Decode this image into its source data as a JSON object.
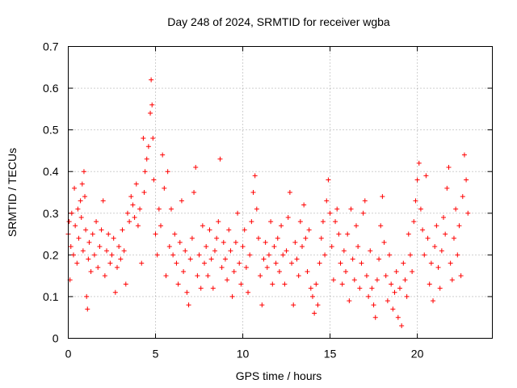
{
  "chart_data": {
    "type": "scatter",
    "title": "Day 248 of 2024, SRMTID for receiver wgba",
    "xlabel": "GPS time / hours",
    "ylabel": "SRMTID / TECUs",
    "xlim": [
      0,
      24.3
    ],
    "ylim": [
      0,
      0.7
    ],
    "xticks": [
      "0",
      "5",
      "10",
      "15",
      "20"
    ],
    "yticks": [
      "0",
      "0.1",
      "0.2",
      "0.3",
      "0.4",
      "0.5",
      "0.6",
      "0.7"
    ],
    "grid": true,
    "marker": "+",
    "color": "#ff0000",
    "series": [
      {
        "name": "SRMTID",
        "points": [
          [
            0.0,
            0.25
          ],
          [
            0.05,
            0.28
          ],
          [
            0.1,
            0.14
          ],
          [
            0.15,
            0.22
          ],
          [
            0.2,
            0.3
          ],
          [
            0.3,
            0.2
          ],
          [
            0.35,
            0.36
          ],
          [
            0.4,
            0.27
          ],
          [
            0.5,
            0.18
          ],
          [
            0.55,
            0.31
          ],
          [
            0.6,
            0.24
          ],
          [
            0.7,
            0.33
          ],
          [
            0.75,
            0.29
          ],
          [
            0.8,
            0.37
          ],
          [
            0.85,
            0.21
          ],
          [
            0.9,
            0.4
          ],
          [
            0.95,
            0.34
          ],
          [
            1.0,
            0.26
          ],
          [
            1.05,
            0.1
          ],
          [
            1.1,
            0.07
          ],
          [
            1.15,
            0.19
          ],
          [
            1.2,
            0.23
          ],
          [
            1.3,
            0.16
          ],
          [
            1.4,
            0.25
          ],
          [
            1.5,
            0.2
          ],
          [
            1.6,
            0.28
          ],
          [
            1.7,
            0.17
          ],
          [
            1.8,
            0.22
          ],
          [
            1.9,
            0.26
          ],
          [
            2.0,
            0.33
          ],
          [
            2.1,
            0.15
          ],
          [
            2.2,
            0.21
          ],
          [
            2.3,
            0.25
          ],
          [
            2.4,
            0.18
          ],
          [
            2.5,
            0.2
          ],
          [
            2.6,
            0.24
          ],
          [
            2.7,
            0.11
          ],
          [
            2.8,
            0.17
          ],
          [
            2.9,
            0.22
          ],
          [
            3.0,
            0.19
          ],
          [
            3.1,
            0.26
          ],
          [
            3.2,
            0.21
          ],
          [
            3.3,
            0.13
          ],
          [
            3.4,
            0.3
          ],
          [
            3.5,
            0.28
          ],
          [
            3.6,
            0.34
          ],
          [
            3.7,
            0.32
          ],
          [
            3.8,
            0.29
          ],
          [
            3.9,
            0.37
          ],
          [
            4.0,
            0.27
          ],
          [
            4.1,
            0.31
          ],
          [
            4.2,
            0.18
          ],
          [
            4.3,
            0.48
          ],
          [
            4.35,
            0.35
          ],
          [
            4.4,
            0.4
          ],
          [
            4.5,
            0.43
          ],
          [
            4.6,
            0.46
          ],
          [
            4.7,
            0.54
          ],
          [
            4.75,
            0.62
          ],
          [
            4.8,
            0.56
          ],
          [
            4.85,
            0.48
          ],
          [
            4.9,
            0.38
          ],
          [
            5.0,
            0.25
          ],
          [
            5.1,
            0.2
          ],
          [
            5.2,
            0.31
          ],
          [
            5.3,
            0.27
          ],
          [
            5.4,
            0.44
          ],
          [
            5.5,
            0.36
          ],
          [
            5.6,
            0.15
          ],
          [
            5.7,
            0.4
          ],
          [
            5.8,
            0.22
          ],
          [
            5.9,
            0.31
          ],
          [
            6.0,
            0.2
          ],
          [
            6.1,
            0.25
          ],
          [
            6.2,
            0.18
          ],
          [
            6.3,
            0.13
          ],
          [
            6.4,
            0.23
          ],
          [
            6.5,
            0.33
          ],
          [
            6.6,
            0.16
          ],
          [
            6.7,
            0.21
          ],
          [
            6.8,
            0.11
          ],
          [
            6.9,
            0.08
          ],
          [
            7.0,
            0.19
          ],
          [
            7.1,
            0.24
          ],
          [
            7.2,
            0.35
          ],
          [
            7.3,
            0.41
          ],
          [
            7.4,
            0.15
          ],
          [
            7.5,
            0.2
          ],
          [
            7.6,
            0.12
          ],
          [
            7.7,
            0.27
          ],
          [
            7.8,
            0.18
          ],
          [
            7.9,
            0.22
          ],
          [
            8.0,
            0.15
          ],
          [
            8.1,
            0.26
          ],
          [
            8.2,
            0.19
          ],
          [
            8.3,
            0.12
          ],
          [
            8.4,
            0.21
          ],
          [
            8.5,
            0.24
          ],
          [
            8.6,
            0.28
          ],
          [
            8.7,
            0.43
          ],
          [
            8.8,
            0.17
          ],
          [
            8.9,
            0.23
          ],
          [
            9.0,
            0.19
          ],
          [
            9.1,
            0.14
          ],
          [
            9.2,
            0.26
          ],
          [
            9.3,
            0.21
          ],
          [
            9.4,
            0.1
          ],
          [
            9.5,
            0.16
          ],
          [
            9.6,
            0.23
          ],
          [
            9.7,
            0.3
          ],
          [
            9.8,
            0.18
          ],
          [
            9.9,
            0.13
          ],
          [
            10.0,
            0.22
          ],
          [
            10.1,
            0.26
          ],
          [
            10.2,
            0.17
          ],
          [
            10.3,
            0.11
          ],
          [
            10.4,
            0.2
          ],
          [
            10.5,
            0.28
          ],
          [
            10.6,
            0.35
          ],
          [
            10.7,
            0.39
          ],
          [
            10.8,
            0.31
          ],
          [
            10.9,
            0.24
          ],
          [
            11.0,
            0.15
          ],
          [
            11.1,
            0.08
          ],
          [
            11.2,
            0.19
          ],
          [
            11.3,
            0.23
          ],
          [
            11.4,
            0.17
          ],
          [
            11.5,
            0.2
          ],
          [
            11.6,
            0.28
          ],
          [
            11.7,
            0.13
          ],
          [
            11.8,
            0.22
          ],
          [
            11.9,
            0.18
          ],
          [
            12.0,
            0.24
          ],
          [
            12.1,
            0.16
          ],
          [
            12.2,
            0.27
          ],
          [
            12.3,
            0.2
          ],
          [
            12.4,
            0.13
          ],
          [
            12.5,
            0.21
          ],
          [
            12.6,
            0.29
          ],
          [
            12.7,
            0.35
          ],
          [
            12.8,
            0.18
          ],
          [
            12.9,
            0.08
          ],
          [
            13.0,
            0.23
          ],
          [
            13.1,
            0.19
          ],
          [
            13.2,
            0.15
          ],
          [
            13.3,
            0.28
          ],
          [
            13.4,
            0.22
          ],
          [
            13.5,
            0.32
          ],
          [
            13.6,
            0.24
          ],
          [
            13.7,
            0.16
          ],
          [
            13.8,
            0.26
          ],
          [
            13.9,
            0.12
          ],
          [
            14.0,
            0.1
          ],
          [
            14.1,
            0.06
          ],
          [
            14.2,
            0.13
          ],
          [
            14.3,
            0.08
          ],
          [
            14.4,
            0.18
          ],
          [
            14.5,
            0.24
          ],
          [
            14.6,
            0.28
          ],
          [
            14.7,
            0.2
          ],
          [
            14.8,
            0.33
          ],
          [
            14.9,
            0.38
          ],
          [
            15.0,
            0.3
          ],
          [
            15.1,
            0.22
          ],
          [
            15.2,
            0.14
          ],
          [
            15.3,
            0.28
          ],
          [
            15.4,
            0.31
          ],
          [
            15.5,
            0.25
          ],
          [
            15.6,
            0.18
          ],
          [
            15.7,
            0.13
          ],
          [
            15.8,
            0.21
          ],
          [
            15.9,
            0.16
          ],
          [
            16.0,
            0.25
          ],
          [
            16.1,
            0.09
          ],
          [
            16.2,
            0.31
          ],
          [
            16.3,
            0.19
          ],
          [
            16.4,
            0.14
          ],
          [
            16.5,
            0.27
          ],
          [
            16.6,
            0.22
          ],
          [
            16.7,
            0.12
          ],
          [
            16.8,
            0.18
          ],
          [
            16.9,
            0.3
          ],
          [
            17.0,
            0.33
          ],
          [
            17.1,
            0.15
          ],
          [
            17.2,
            0.1
          ],
          [
            17.3,
            0.21
          ],
          [
            17.4,
            0.12
          ],
          [
            17.5,
            0.08
          ],
          [
            17.6,
            0.05
          ],
          [
            17.7,
            0.14
          ],
          [
            17.8,
            0.19
          ],
          [
            17.9,
            0.27
          ],
          [
            18.0,
            0.34
          ],
          [
            18.1,
            0.23
          ],
          [
            18.2,
            0.15
          ],
          [
            18.3,
            0.09
          ],
          [
            18.4,
            0.2
          ],
          [
            18.5,
            0.13
          ],
          [
            18.6,
            0.07
          ],
          [
            18.7,
            0.11
          ],
          [
            18.8,
            0.16
          ],
          [
            18.9,
            0.05
          ],
          [
            19.0,
            0.12
          ],
          [
            19.1,
            0.03
          ],
          [
            19.2,
            0.18
          ],
          [
            19.3,
            0.14
          ],
          [
            19.4,
            0.1
          ],
          [
            19.5,
            0.25
          ],
          [
            19.6,
            0.2
          ],
          [
            19.7,
            0.16
          ],
          [
            19.8,
            0.28
          ],
          [
            19.9,
            0.33
          ],
          [
            20.0,
            0.38
          ],
          [
            20.1,
            0.42
          ],
          [
            20.2,
            0.31
          ],
          [
            20.3,
            0.26
          ],
          [
            20.4,
            0.2
          ],
          [
            20.5,
            0.39
          ],
          [
            20.6,
            0.24
          ],
          [
            20.7,
            0.13
          ],
          [
            20.8,
            0.18
          ],
          [
            20.9,
            0.09
          ],
          [
            21.0,
            0.22
          ],
          [
            21.1,
            0.27
          ],
          [
            21.2,
            0.17
          ],
          [
            21.3,
            0.12
          ],
          [
            21.4,
            0.21
          ],
          [
            21.5,
            0.29
          ],
          [
            21.6,
            0.25
          ],
          [
            21.7,
            0.36
          ],
          [
            21.8,
            0.41
          ],
          [
            21.9,
            0.18
          ],
          [
            22.0,
            0.14
          ],
          [
            22.1,
            0.24
          ],
          [
            22.2,
            0.31
          ],
          [
            22.3,
            0.2
          ],
          [
            22.4,
            0.27
          ],
          [
            22.5,
            0.15
          ],
          [
            22.6,
            0.34
          ],
          [
            22.7,
            0.44
          ],
          [
            22.8,
            0.38
          ],
          [
            22.9,
            0.3
          ]
        ]
      }
    ]
  }
}
